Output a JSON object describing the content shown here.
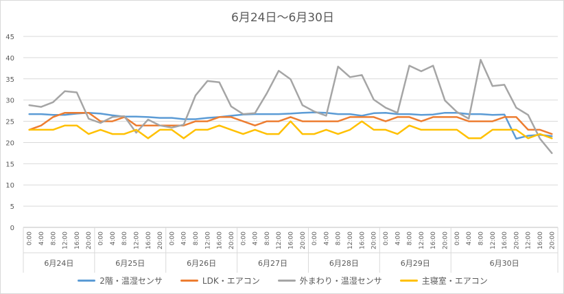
{
  "chart_data": {
    "type": "line",
    "title": "6月24日～6月30日",
    "xlabel": "",
    "ylabel": "",
    "ylim": [
      0,
      45
    ],
    "y_ticks": [
      0,
      5,
      10,
      15,
      20,
      25,
      30,
      35,
      40,
      45
    ],
    "grid": true,
    "legend_position": "bottom",
    "x": [
      "0:00",
      "4:00",
      "8:00",
      "12:00",
      "16:00",
      "20:00",
      "0:00",
      "4:00",
      "8:00",
      "12:00",
      "16:00",
      "20:00",
      "0:00",
      "4:00",
      "8:00",
      "12:00",
      "16:00",
      "20:00",
      "0:00",
      "4:00",
      "8:00",
      "12:00",
      "16:00",
      "20:00",
      "0:00",
      "4:00",
      "8:00",
      "12:00",
      "16:00",
      "20:00",
      "0:00",
      "4:00",
      "8:00",
      "12:00",
      "16:00",
      "20:00",
      "0:00",
      "4:00",
      "8:00",
      "12:00",
      "16:00",
      "20:00",
      "12:00",
      "16:00",
      "20:00"
    ],
    "day_groups": [
      {
        "label": "6月24日",
        "start": 0,
        "count": 6
      },
      {
        "label": "6月25日",
        "start": 6,
        "count": 6
      },
      {
        "label": "6月26日",
        "start": 12,
        "count": 6
      },
      {
        "label": "6月27日",
        "start": 18,
        "count": 6
      },
      {
        "label": "6月28日",
        "start": 24,
        "count": 6
      },
      {
        "label": "6月29日",
        "start": 30,
        "count": 6
      },
      {
        "label": "6月30日",
        "start": 36,
        "count": 9
      }
    ],
    "series": [
      {
        "name": "2階・温湿センサ",
        "color": "#5b9bd5",
        "values": [
          26.7,
          26.7,
          26.5,
          26.5,
          26.8,
          27.0,
          26.8,
          26.4,
          26.1,
          26.1,
          26.0,
          25.8,
          25.8,
          25.5,
          25.5,
          25.8,
          26.0,
          26.3,
          26.6,
          26.7,
          26.7,
          26.7,
          26.8,
          27.0,
          27.1,
          27.0,
          26.7,
          26.7,
          26.3,
          26.9,
          27.0,
          26.7,
          26.7,
          26.5,
          26.6,
          27.0,
          27.0,
          26.7,
          26.7,
          26.5,
          26.6,
          20.9,
          21.6,
          21.8,
          21.5
        ]
      },
      {
        "name": "LDK・エアコン",
        "color": "#ed7d31",
        "values": [
          23,
          24,
          26,
          27,
          27,
          27,
          25,
          25,
          26,
          24,
          24,
          24,
          24,
          24,
          25,
          25,
          26,
          26,
          25,
          24,
          25,
          25,
          26,
          25,
          25,
          25,
          25,
          26,
          26,
          26,
          25,
          26,
          26,
          25,
          26,
          26,
          26,
          25,
          25,
          25,
          26,
          26,
          23,
          23,
          22
        ]
      },
      {
        "name": "外まわり・温湿センサ",
        "color": "#a5a5a5",
        "values": [
          28.8,
          28.4,
          29.5,
          32.1,
          31.8,
          25.6,
          24.6,
          26.0,
          26.2,
          22.3,
          25.4,
          24.0,
          23.5,
          24.2,
          31.1,
          34.5,
          34.2,
          28.5,
          26.7,
          26.9,
          31.6,
          36.9,
          34.9,
          28.8,
          27.3,
          26.3,
          37.9,
          35.4,
          35.9,
          30.1,
          28.2,
          27.0,
          38.1,
          36.8,
          38.1,
          29.9,
          27.2,
          25.6,
          39.5,
          33.3,
          33.6,
          28.2,
          26.5,
          20.9,
          17.5
        ]
      },
      {
        "name": "主寝室・エアコン",
        "color": "#ffc000",
        "values": [
          23,
          23,
          23,
          24,
          24,
          22,
          23,
          22,
          22,
          23,
          21,
          23,
          23,
          21,
          23,
          23,
          24,
          23,
          22,
          23,
          22,
          22,
          25,
          22,
          22,
          23,
          22,
          23,
          25,
          23,
          23,
          22,
          24,
          23,
          23,
          23,
          23,
          21,
          21,
          23,
          23,
          23,
          21,
          22,
          21
        ]
      }
    ]
  }
}
